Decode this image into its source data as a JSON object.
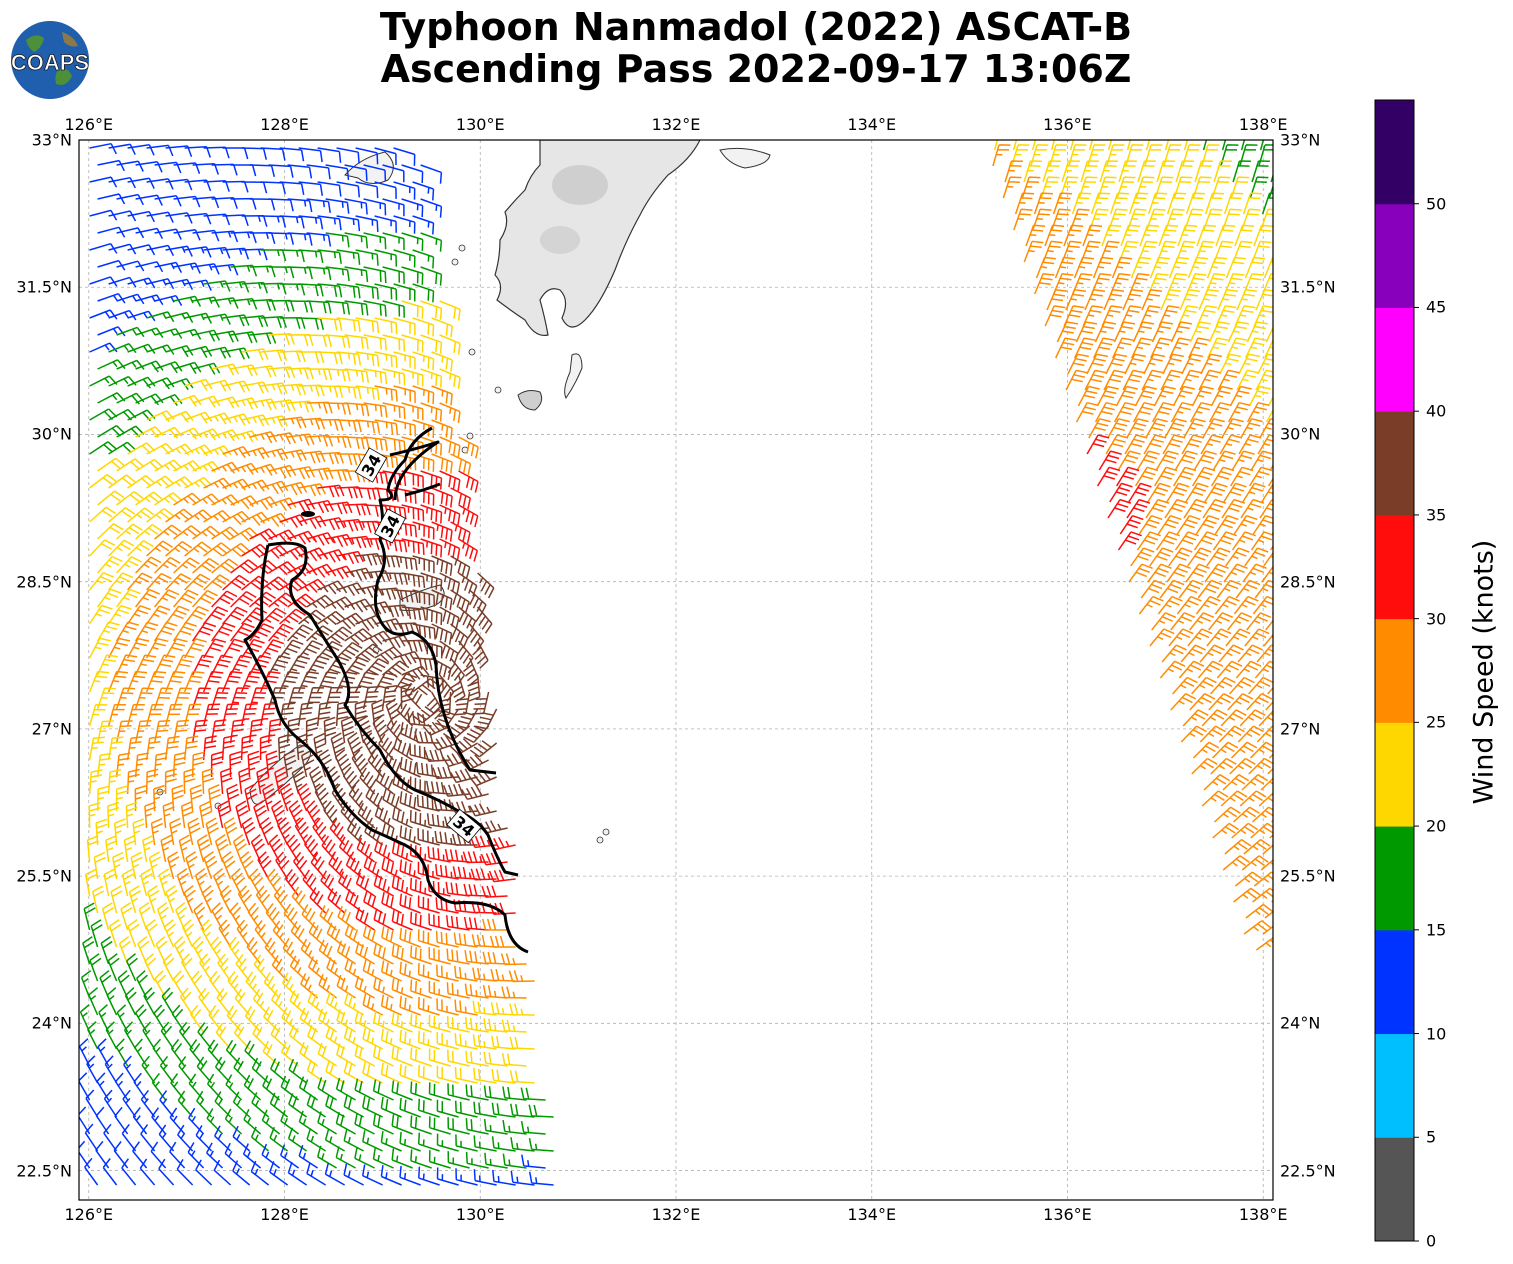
{
  "title": {
    "line1": "Typhoon Nanmadol (2022) ASCAT-B",
    "line2": "Ascending Pass 2022-09-17 13:06Z"
  },
  "logo": {
    "text": "COAPS",
    "icon": "globe-icon"
  },
  "map": {
    "lon_range": [
      125.9,
      138.1
    ],
    "lat_range": [
      22.2,
      33.0
    ],
    "lon_ticks": [
      "126°E",
      "128°E",
      "130°E",
      "132°E",
      "134°E",
      "136°E",
      "138°E"
    ],
    "lat_ticks": [
      "33°N",
      "31.5°N",
      "30°N",
      "28.5°N",
      "27°N",
      "25.5°N",
      "24°N",
      "22.5°N"
    ],
    "gridlines": true,
    "contour_label": "34",
    "contour_value_knots": 34
  },
  "colorbar": {
    "label": "Wind Speed (knots)",
    "ticks": [
      "0",
      "5",
      "10",
      "15",
      "20",
      "25",
      "30",
      "35",
      "40",
      "45",
      "50"
    ],
    "colors": [
      "#555555",
      "#00bfff",
      "#0033ff",
      "#009900",
      "#ffd700",
      "#ff8c00",
      "#ff0d0d",
      "#7a3d28",
      "#ff00ff",
      "#8800bb",
      "#330066"
    ]
  }
}
